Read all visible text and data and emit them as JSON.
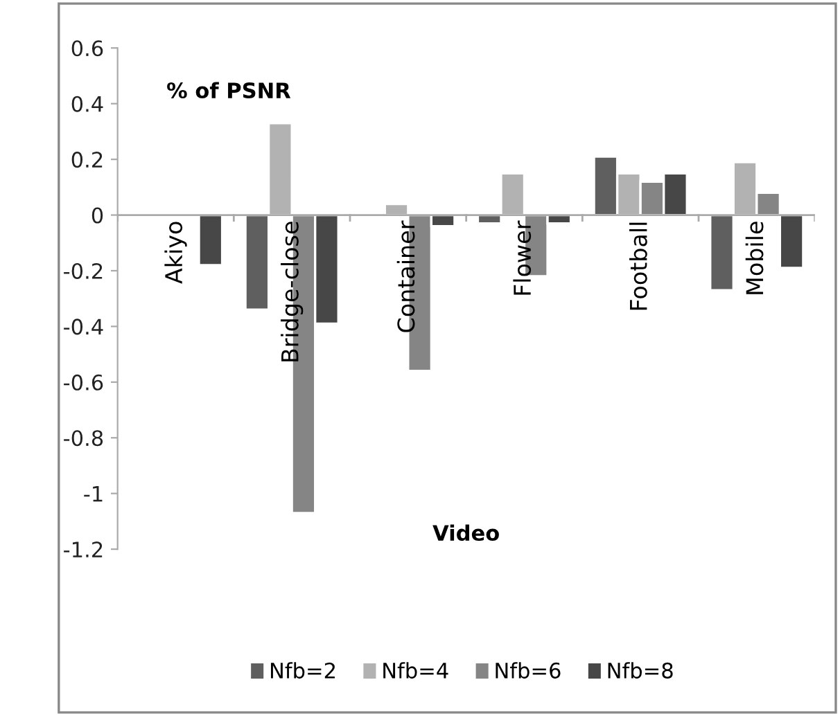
{
  "chart_data": {
    "type": "bar",
    "ylabel": "% of PSNR",
    "xlabel": "Video",
    "categories": [
      "Akiyo",
      "Bridge-close",
      "Container",
      "Flower",
      "Football",
      "Mobile"
    ],
    "series": [
      {
        "name": "Nfb=2",
        "color": "#5f5f5f",
        "values": [
          null,
          -0.34,
          null,
          -0.03,
          0.21,
          -0.27
        ]
      },
      {
        "name": "Nfb=4",
        "color": "#b2b2b2",
        "values": [
          null,
          0.33,
          0.04,
          0.15,
          0.15,
          0.19
        ]
      },
      {
        "name": "Nfb=6",
        "color": "#858585",
        "values": [
          null,
          -1.07,
          -0.56,
          -0.22,
          0.12,
          0.08
        ]
      },
      {
        "name": "Nfb=8",
        "color": "#474747",
        "values": [
          -0.18,
          -0.39,
          -0.04,
          -0.03,
          0.15,
          -0.19
        ]
      }
    ],
    "ylim": [
      -1.2,
      0.6
    ],
    "yticks": [
      -1.2,
      -1,
      -0.8,
      -0.6,
      -0.4,
      -0.2,
      0,
      0.2,
      0.4,
      0.6
    ],
    "grid": false,
    "legend": "bottom"
  }
}
